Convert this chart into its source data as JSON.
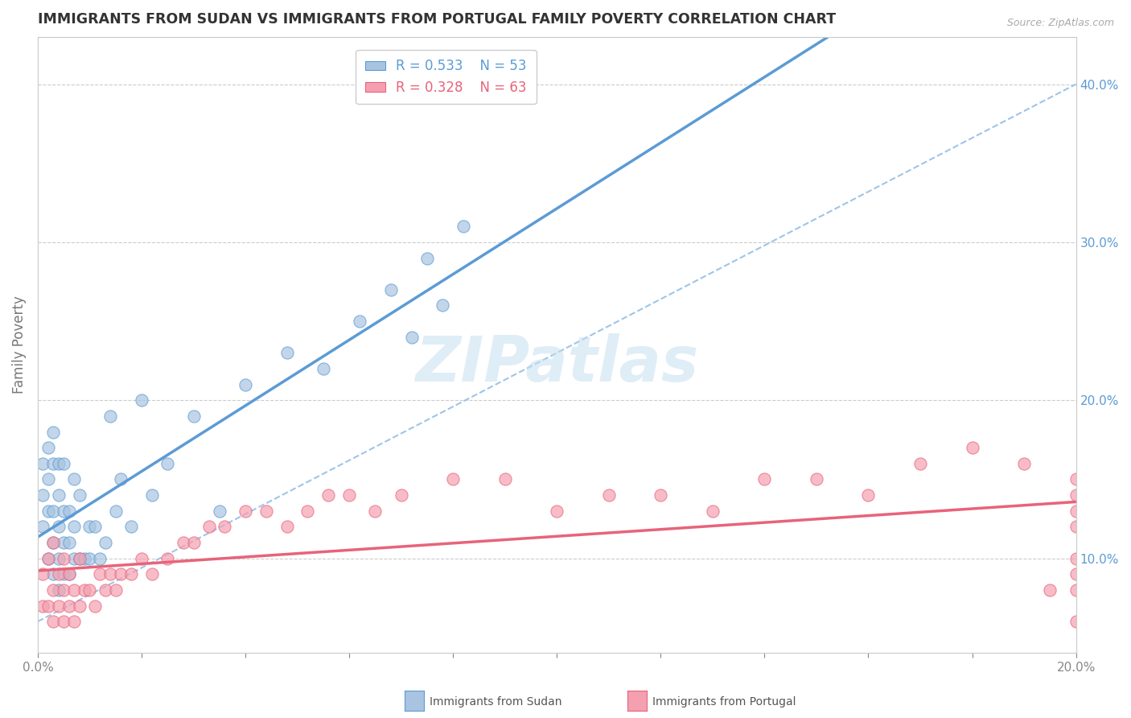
{
  "title": "IMMIGRANTS FROM SUDAN VS IMMIGRANTS FROM PORTUGAL FAMILY POVERTY CORRELATION CHART",
  "source": "Source: ZipAtlas.com",
  "ylabel": "Family Poverty",
  "xlim": [
    0.0,
    0.2
  ],
  "ylim": [
    0.04,
    0.43
  ],
  "xticks": [
    0.0,
    0.02,
    0.04,
    0.06,
    0.08,
    0.1,
    0.12,
    0.14,
    0.16,
    0.18,
    0.2
  ],
  "yticks_right": [
    0.1,
    0.2,
    0.3,
    0.4
  ],
  "ytick_labels_right": [
    "10.0%",
    "20.0%",
    "30.0%",
    "40.0%"
  ],
  "sudan_color": "#a8c4e0",
  "portugal_color": "#f4a0b0",
  "sudan_line_color": "#5b9bd5",
  "portugal_line_color": "#e8637a",
  "diagonal_color": "#9ec5e8",
  "sudan_R": 0.533,
  "sudan_N": 53,
  "portugal_R": 0.328,
  "portugal_N": 63,
  "watermark_text": "ZIPatlas",
  "sudan_x": [
    0.001,
    0.001,
    0.001,
    0.002,
    0.002,
    0.002,
    0.002,
    0.003,
    0.003,
    0.003,
    0.003,
    0.003,
    0.004,
    0.004,
    0.004,
    0.004,
    0.004,
    0.005,
    0.005,
    0.005,
    0.005,
    0.006,
    0.006,
    0.006,
    0.007,
    0.007,
    0.007,
    0.008,
    0.008,
    0.009,
    0.01,
    0.01,
    0.011,
    0.012,
    0.013,
    0.014,
    0.015,
    0.016,
    0.018,
    0.02,
    0.022,
    0.025,
    0.03,
    0.035,
    0.04,
    0.048,
    0.055,
    0.062,
    0.068,
    0.072,
    0.075,
    0.078,
    0.082
  ],
  "sudan_y": [
    0.12,
    0.14,
    0.16,
    0.1,
    0.13,
    0.15,
    0.17,
    0.09,
    0.11,
    0.13,
    0.16,
    0.18,
    0.08,
    0.1,
    0.12,
    0.14,
    0.16,
    0.09,
    0.11,
    0.13,
    0.16,
    0.09,
    0.11,
    0.13,
    0.1,
    0.12,
    0.15,
    0.1,
    0.14,
    0.1,
    0.1,
    0.12,
    0.12,
    0.1,
    0.11,
    0.19,
    0.13,
    0.15,
    0.12,
    0.2,
    0.14,
    0.16,
    0.19,
    0.13,
    0.21,
    0.23,
    0.22,
    0.25,
    0.27,
    0.24,
    0.29,
    0.26,
    0.31
  ],
  "portugal_x": [
    0.001,
    0.001,
    0.002,
    0.002,
    0.003,
    0.003,
    0.003,
    0.004,
    0.004,
    0.005,
    0.005,
    0.005,
    0.006,
    0.006,
    0.007,
    0.007,
    0.008,
    0.008,
    0.009,
    0.01,
    0.011,
    0.012,
    0.013,
    0.014,
    0.015,
    0.016,
    0.018,
    0.02,
    0.022,
    0.025,
    0.028,
    0.03,
    0.033,
    0.036,
    0.04,
    0.044,
    0.048,
    0.052,
    0.056,
    0.06,
    0.065,
    0.07,
    0.08,
    0.09,
    0.1,
    0.11,
    0.12,
    0.13,
    0.14,
    0.15,
    0.16,
    0.17,
    0.18,
    0.19,
    0.195,
    0.2,
    0.2,
    0.2,
    0.2,
    0.2,
    0.2,
    0.2,
    0.2
  ],
  "portugal_y": [
    0.07,
    0.09,
    0.07,
    0.1,
    0.06,
    0.08,
    0.11,
    0.07,
    0.09,
    0.06,
    0.08,
    0.1,
    0.07,
    0.09,
    0.06,
    0.08,
    0.07,
    0.1,
    0.08,
    0.08,
    0.07,
    0.09,
    0.08,
    0.09,
    0.08,
    0.09,
    0.09,
    0.1,
    0.09,
    0.1,
    0.11,
    0.11,
    0.12,
    0.12,
    0.13,
    0.13,
    0.12,
    0.13,
    0.14,
    0.14,
    0.13,
    0.14,
    0.15,
    0.15,
    0.13,
    0.14,
    0.14,
    0.13,
    0.15,
    0.15,
    0.14,
    0.16,
    0.17,
    0.16,
    0.08,
    0.14,
    0.12,
    0.1,
    0.15,
    0.13,
    0.08,
    0.06,
    0.09
  ]
}
